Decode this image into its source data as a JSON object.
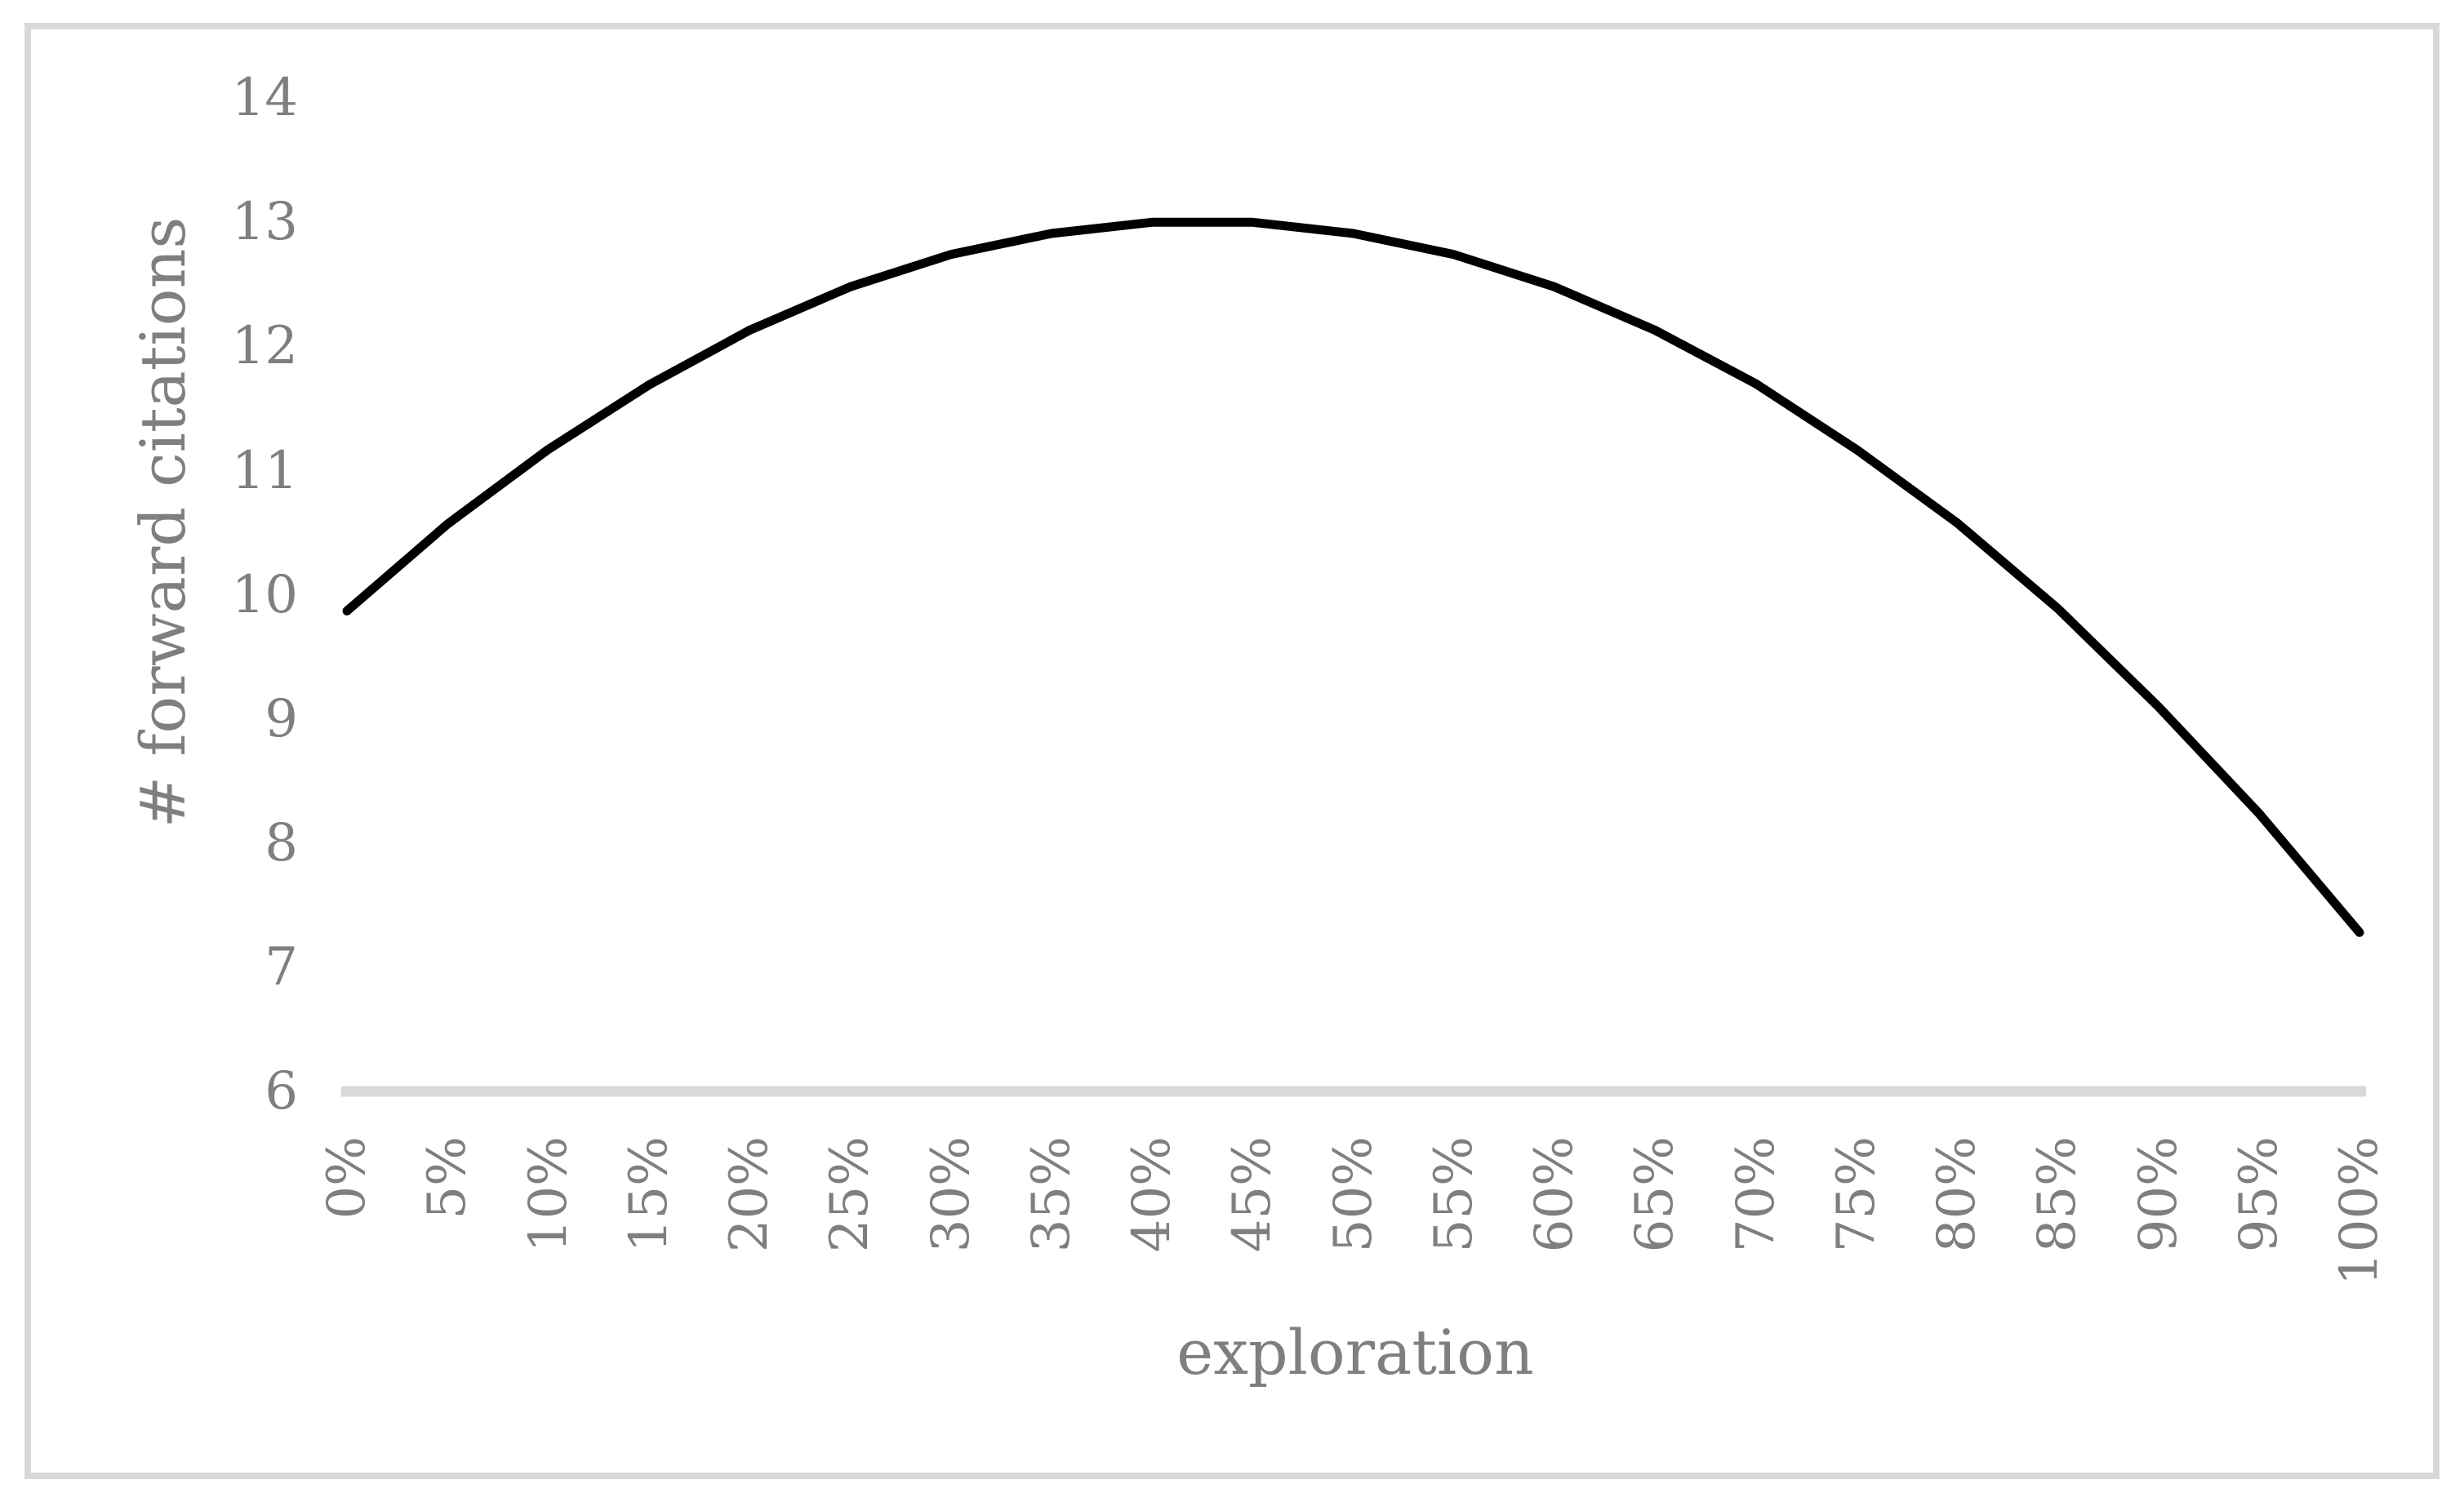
{
  "chart_data": {
    "type": "line",
    "title": "",
    "xlabel": "exploration",
    "ylabel": "# forward citations",
    "categories": [
      "0%",
      "5%",
      "10%",
      "15%",
      "20%",
      "25%",
      "30%",
      "35%",
      "40%",
      "45%",
      "50%",
      "55%",
      "60%",
      "65%",
      "70%",
      "75%",
      "80%",
      "85%",
      "90%",
      "95%",
      "100%"
    ],
    "series": [
      {
        "name": "forward citations",
        "values": [
          9.87,
          10.57,
          11.17,
          11.69,
          12.13,
          12.48,
          12.74,
          12.91,
          13.0,
          13.0,
          12.91,
          12.74,
          12.48,
          12.13,
          11.7,
          11.17,
          10.58,
          9.89,
          9.1,
          8.24,
          7.28
        ]
      }
    ],
    "ylim": [
      6,
      14
    ],
    "yticks": [
      14,
      13,
      12,
      11,
      10,
      9,
      8,
      7,
      6
    ],
    "x_tick_rotation": -90,
    "grid": false,
    "legend": "none",
    "line_color": "#000000",
    "axis_line_color": "#d9d9d9",
    "border_color": "#d9d9d9",
    "text_color": "#7f7f7f",
    "background_color": "#ffffff"
  }
}
